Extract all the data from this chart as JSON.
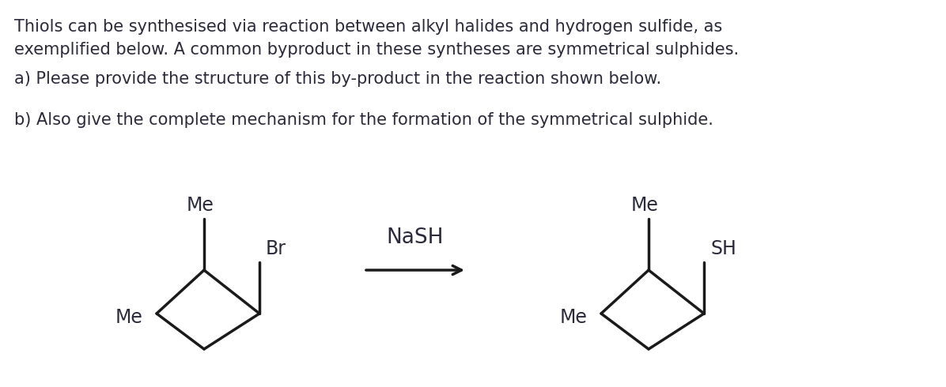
{
  "background_color": "#ffffff",
  "text_color": "#2a2a3a",
  "line_color": "#1a1a1a",
  "title_lines": [
    "Thiols can be synthesised via reaction between alkyl halides and hydrogen sulfide, as",
    "exemplified below. A common byproduct in these syntheses are symmetrical sulphides."
  ],
  "question_a": "a) Please provide the structure of this by-product in the reaction shown below.",
  "question_b": "b) Also give the complete mechanism for the formation of the symmetrical sulphide.",
  "reagent_label": "NaSH",
  "font_size_text": 15.0,
  "font_size_chem": 17.0
}
